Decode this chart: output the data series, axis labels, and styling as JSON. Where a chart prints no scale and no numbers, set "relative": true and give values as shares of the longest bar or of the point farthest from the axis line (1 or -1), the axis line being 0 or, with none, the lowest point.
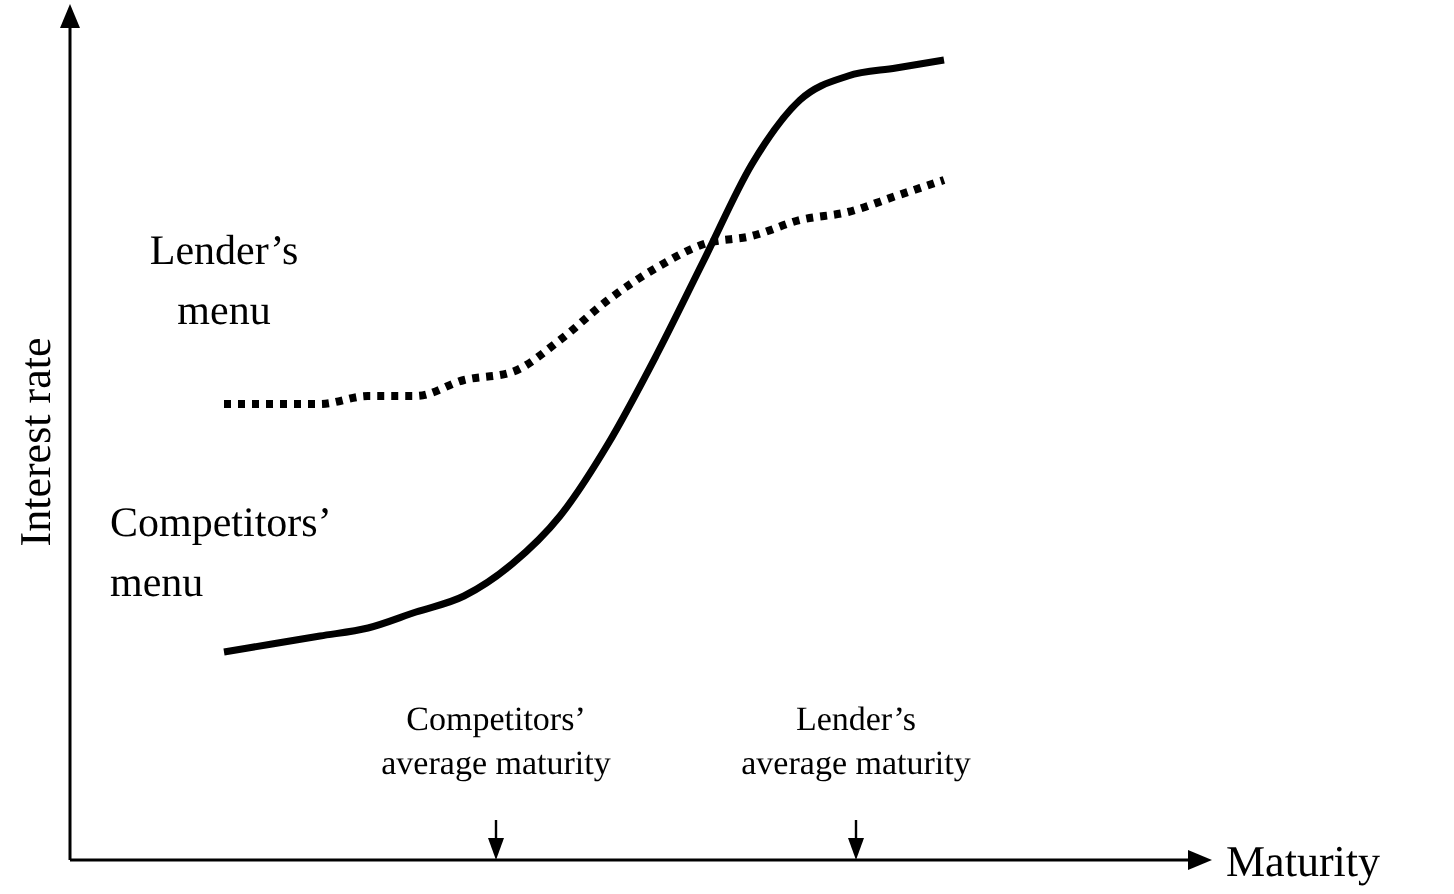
{
  "chart_data": {
    "type": "line",
    "relative": true,
    "xlabel": "Maturity",
    "ylabel": "Interest rate",
    "legend": false,
    "categories": [
      null,
      null,
      null,
      null,
      null,
      null,
      null,
      null,
      null,
      null,
      null,
      null,
      null,
      null,
      null,
      null,
      null,
      null,
      null,
      null,
      null,
      null,
      null,
      null
    ],
    "series": [
      {
        "name": "Lender’s menu",
        "color": "#000000",
        "line_style": "dotted",
        "values": [
          null,
          null,
          null,
          0.57,
          0.57,
          0.57,
          0.58,
          0.58,
          0.6,
          0.61,
          0.65,
          0.7,
          0.74,
          0.77,
          0.78,
          0.8,
          0.81,
          0.83,
          0.85,
          null,
          null,
          null,
          null,
          null
        ]
      },
      {
        "name": "Competitors’ menu",
        "color": "#000000",
        "line_style": "solid",
        "values": [
          null,
          null,
          null,
          0.26,
          0.27,
          0.28,
          0.29,
          0.31,
          0.33,
          0.37,
          0.43,
          0.52,
          0.63,
          0.75,
          0.87,
          0.95,
          0.98,
          0.99,
          1.0,
          null,
          null,
          null,
          null,
          null
        ]
      }
    ],
    "annotations": [
      "Competitors’ average maturity",
      "Lender’s average maturity"
    ]
  }
}
